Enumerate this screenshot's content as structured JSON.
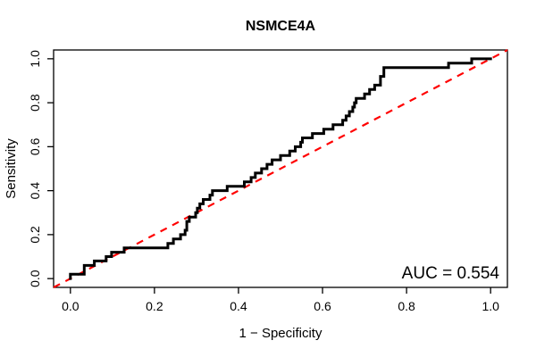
{
  "chart_data": {
    "type": "line",
    "subtype": "roc-step-curve",
    "title": "NSMCE4A",
    "xlabel": "1 − Specificity",
    "ylabel": "Sensitivity",
    "xlim": [
      0,
      1
    ],
    "ylim": [
      0,
      1
    ],
    "x_ticks": [
      "0.0",
      "0.2",
      "0.4",
      "0.6",
      "0.8",
      "1.0"
    ],
    "y_ticks": [
      "0.0",
      "0.2",
      "0.4",
      "0.6",
      "0.8",
      "1.0"
    ],
    "grid": false,
    "legend": "none",
    "annotation": "AUC = 0.554",
    "auc_value": 0.554,
    "colors": {
      "roc_curve": "#000000",
      "reference_line": "#FF0000",
      "box": "#000000",
      "background": "#FFFFFF"
    },
    "series": [
      {
        "name": "ROC step curve",
        "color": "#000000",
        "style": "solid",
        "flats": [
          [
            0.02,
            0.0,
            0.033
          ],
          [
            0.06,
            0.033,
            0.057
          ],
          [
            0.08,
            0.057,
            0.085
          ],
          [
            0.1,
            0.085,
            0.098
          ],
          [
            0.12,
            0.098,
            0.128
          ],
          [
            0.14,
            0.128,
            0.232
          ],
          [
            0.16,
            0.232,
            0.245
          ],
          [
            0.18,
            0.245,
            0.262
          ],
          [
            0.2,
            0.262,
            0.273
          ],
          [
            0.22,
            0.273,
            0.277
          ],
          [
            0.26,
            0.277,
            0.283
          ],
          [
            0.28,
            0.283,
            0.298
          ],
          [
            0.3,
            0.298,
            0.302
          ],
          [
            0.32,
            0.302,
            0.308
          ],
          [
            0.34,
            0.308,
            0.316
          ],
          [
            0.36,
            0.316,
            0.332
          ],
          [
            0.38,
            0.332,
            0.338
          ],
          [
            0.4,
            0.338,
            0.373
          ],
          [
            0.42,
            0.373,
            0.414
          ],
          [
            0.44,
            0.414,
            0.43
          ],
          [
            0.46,
            0.43,
            0.44
          ],
          [
            0.48,
            0.44,
            0.455
          ],
          [
            0.5,
            0.455,
            0.468
          ],
          [
            0.52,
            0.468,
            0.48
          ],
          [
            0.54,
            0.48,
            0.5
          ],
          [
            0.56,
            0.5,
            0.522
          ],
          [
            0.58,
            0.522,
            0.535
          ],
          [
            0.6,
            0.535,
            0.548
          ],
          [
            0.62,
            0.548,
            0.552
          ],
          [
            0.64,
            0.552,
            0.576
          ],
          [
            0.66,
            0.576,
            0.603
          ],
          [
            0.68,
            0.603,
            0.625
          ],
          [
            0.7,
            0.625,
            0.648
          ],
          [
            0.72,
            0.648,
            0.656
          ],
          [
            0.74,
            0.656,
            0.664
          ],
          [
            0.76,
            0.664,
            0.672
          ],
          [
            0.78,
            0.672,
            0.676
          ],
          [
            0.8,
            0.676,
            0.68
          ],
          [
            0.82,
            0.68,
            0.7
          ],
          [
            0.84,
            0.7,
            0.712
          ],
          [
            0.86,
            0.712,
            0.724
          ],
          [
            0.88,
            0.724,
            0.738
          ],
          [
            0.92,
            0.738,
            0.746
          ],
          [
            0.96,
            0.746,
            0.9
          ],
          [
            0.98,
            0.9,
            0.955
          ],
          [
            1.0,
            0.955,
            1.0
          ]
        ]
      },
      {
        "name": "Chance reference diagonal",
        "color": "#FF0000",
        "style": "dashed",
        "from": [
          0,
          0
        ],
        "to": [
          1,
          1
        ]
      }
    ]
  }
}
